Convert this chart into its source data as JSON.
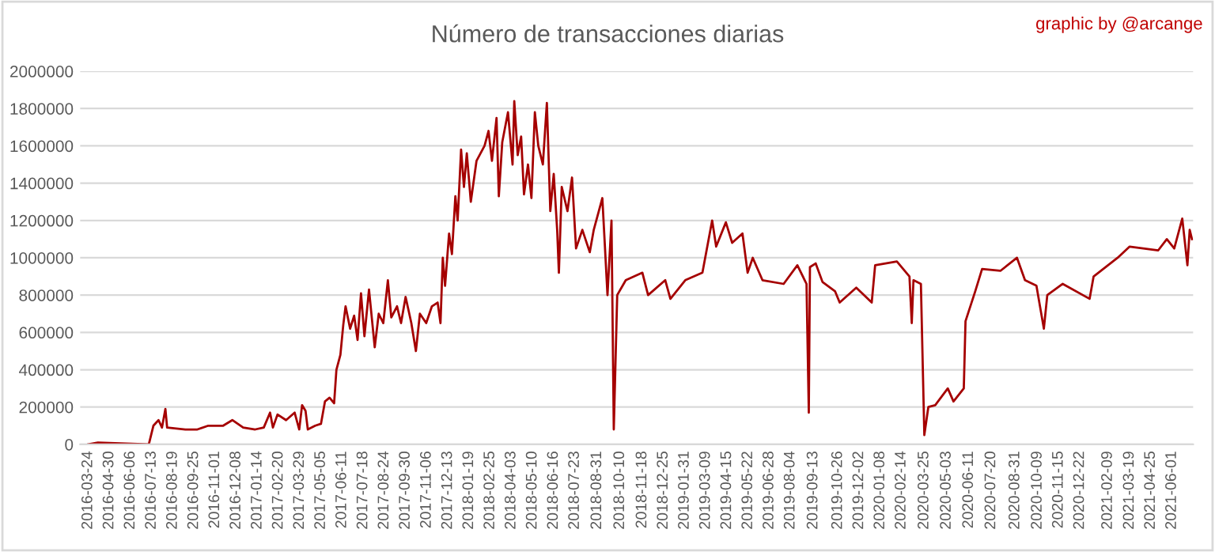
{
  "chart_data": {
    "type": "line",
    "title": "Número de transacciones diarias",
    "annotations": [
      "graphic by @arcange"
    ],
    "x": [
      "2016-03-24",
      "2016-04-10",
      "2016-07-08",
      "2016-07-16",
      "2016-07-25",
      "2016-07-31",
      "2016-08-06",
      "2016-08-09",
      "2016-09-10",
      "2016-10-01",
      "2016-10-20",
      "2016-11-15",
      "2016-12-01",
      "2016-12-20",
      "2017-01-10",
      "2017-01-25",
      "2017-02-05",
      "2017-02-10",
      "2017-02-18",
      "2017-03-05",
      "2017-03-20",
      "2017-03-28",
      "2017-04-02",
      "2017-04-08",
      "2017-04-12",
      "2017-04-25",
      "2017-05-05",
      "2017-05-12",
      "2017-05-20",
      "2017-05-28",
      "2017-06-01",
      "2017-06-08",
      "2017-06-13",
      "2017-06-17",
      "2017-06-25",
      "2017-07-02",
      "2017-07-08",
      "2017-07-14",
      "2017-07-20",
      "2017-07-28",
      "2017-08-07",
      "2017-08-14",
      "2017-08-22",
      "2017-08-30",
      "2017-09-05",
      "2017-09-15",
      "2017-09-22",
      "2017-09-30",
      "2017-10-10",
      "2017-10-18",
      "2017-10-25",
      "2017-11-05",
      "2017-11-15",
      "2017-11-25",
      "2017-11-30",
      "2017-12-04",
      "2017-12-08",
      "2017-12-15",
      "2017-12-20",
      "2017-12-26",
      "2017-12-30",
      "2018-01-05",
      "2018-01-10",
      "2018-01-15",
      "2018-01-22",
      "2018-02-01",
      "2018-02-15",
      "2018-02-22",
      "2018-02-28",
      "2018-03-08",
      "2018-03-12",
      "2018-03-18",
      "2018-03-28",
      "2018-04-05",
      "2018-04-08",
      "2018-04-14",
      "2018-04-20",
      "2018-04-25",
      "2018-05-02",
      "2018-05-08",
      "2018-05-14",
      "2018-05-20",
      "2018-05-28",
      "2018-06-04",
      "2018-06-10",
      "2018-06-16",
      "2018-06-22",
      "2018-06-25",
      "2018-06-30",
      "2018-07-10",
      "2018-07-18",
      "2018-07-25",
      "2018-08-05",
      "2018-08-18",
      "2018-08-25",
      "2018-09-09",
      "2018-09-18",
      "2018-09-25",
      "2018-09-29",
      "2018-10-05",
      "2018-10-20",
      "2018-11-18",
      "2018-11-28",
      "2018-12-28",
      "2019-01-06",
      "2019-02-01",
      "2019-03-03",
      "2019-03-20",
      "2019-03-27",
      "2019-04-13",
      "2019-04-24",
      "2019-05-12",
      "2019-05-21",
      "2019-05-30",
      "2019-06-16",
      "2019-07-23",
      "2019-08-16",
      "2019-09-01",
      "2019-09-05",
      "2019-09-07",
      "2019-09-17",
      "2019-09-29",
      "2019-10-21",
      "2019-10-29",
      "2019-11-27",
      "2019-12-24",
      "2019-12-30",
      "2020-02-06",
      "2020-02-28",
      "2020-03-03",
      "2020-03-06",
      "2020-03-19",
      "2020-03-25",
      "2020-04-01",
      "2020-04-13",
      "2020-05-05",
      "2020-05-15",
      "2020-06-02",
      "2020-06-05",
      "2020-06-22",
      "2020-07-04",
      "2020-08-05",
      "2020-09-03",
      "2020-09-17",
      "2020-10-07",
      "2020-10-20",
      "2020-10-26",
      "2020-11-22",
      "2021-01-08",
      "2021-01-15",
      "2021-02-26",
      "2021-03-19",
      "2021-05-08",
      "2021-05-23",
      "2021-06-05",
      "2021-06-19",
      "2021-06-28",
      "2021-07-02",
      "2021-07-06"
    ],
    "series": [
      {
        "color": "#a50000",
        "values": [
          0,
          10000,
          0,
          100000,
          130000,
          90000,
          190000,
          90000,
          80000,
          80000,
          100000,
          100000,
          130000,
          90000,
          80000,
          90000,
          170000,
          90000,
          160000,
          130000,
          170000,
          80000,
          210000,
          180000,
          80000,
          100000,
          110000,
          230000,
          250000,
          220000,
          400000,
          480000,
          640000,
          740000,
          620000,
          690000,
          560000,
          810000,
          580000,
          830000,
          520000,
          700000,
          650000,
          880000,
          680000,
          740000,
          650000,
          790000,
          650000,
          500000,
          700000,
          650000,
          740000,
          760000,
          650000,
          1000000,
          850000,
          1130000,
          1020000,
          1330000,
          1200000,
          1580000,
          1380000,
          1560000,
          1300000,
          1520000,
          1600000,
          1680000,
          1520000,
          1750000,
          1330000,
          1620000,
          1780000,
          1500000,
          1840000,
          1550000,
          1650000,
          1340000,
          1500000,
          1320000,
          1780000,
          1600000,
          1500000,
          1830000,
          1250000,
          1450000,
          1150000,
          920000,
          1380000,
          1250000,
          1430000,
          1050000,
          1150000,
          1030000,
          1150000,
          1320000,
          800000,
          1200000,
          80000,
          800000,
          880000,
          920000,
          800000,
          880000,
          780000,
          880000,
          920000,
          1200000,
          1060000,
          1190000,
          1080000,
          1130000,
          920000,
          1000000,
          880000,
          860000,
          960000,
          860000,
          170000,
          950000,
          970000,
          870000,
          820000,
          760000,
          840000,
          760000,
          960000,
          980000,
          900000,
          650000,
          880000,
          860000,
          50000,
          200000,
          210000,
          300000,
          230000,
          300000,
          660000,
          820000,
          940000,
          930000,
          1000000,
          880000,
          850000,
          620000,
          800000,
          860000,
          780000,
          900000,
          1000000,
          1060000,
          1040000,
          1100000,
          1050000,
          1210000,
          960000,
          1150000,
          1100000
        ]
      }
    ],
    "xlim": [
      "2016-03-10",
      "2021-07-08"
    ],
    "xticks": [
      "2016-03-24",
      "2016-04-30",
      "2016-06-06",
      "2016-07-13",
      "2016-08-19",
      "2016-09-25",
      "2016-11-01",
      "2016-12-08",
      "2017-01-14",
      "2017-02-20",
      "2017-03-29",
      "2017-05-05",
      "2017-06-11",
      "2017-07-18",
      "2017-08-24",
      "2017-09-30",
      "2017-11-06",
      "2017-12-13",
      "2018-01-19",
      "2018-02-25",
      "2018-04-03",
      "2018-05-10",
      "2018-06-16",
      "2018-07-23",
      "2018-08-31",
      "2018-10-10",
      "2018-11-18",
      "2018-12-25",
      "2019-01-31",
      "2019-03-09",
      "2019-04-15",
      "2019-05-22",
      "2019-06-28",
      "2019-08-04",
      "2019-09-13",
      "2019-10-26",
      "2019-12-02",
      "2020-01-08",
      "2020-02-14",
      "2020-03-25",
      "2020-05-03",
      "2020-06-11",
      "2020-07-20",
      "2020-08-31",
      "2020-10-09",
      "2020-11-15",
      "2020-12-22",
      "2021-02-09",
      "2021-03-19",
      "2021-04-25",
      "2021-06-01"
    ],
    "ylim": [
      0,
      2000000
    ],
    "yticks": [
      0,
      200000,
      400000,
      600000,
      800000,
      1000000,
      1200000,
      1400000,
      1600000,
      1800000,
      2000000
    ],
    "grid": "y",
    "marker": "none",
    "line_style": "solid"
  }
}
